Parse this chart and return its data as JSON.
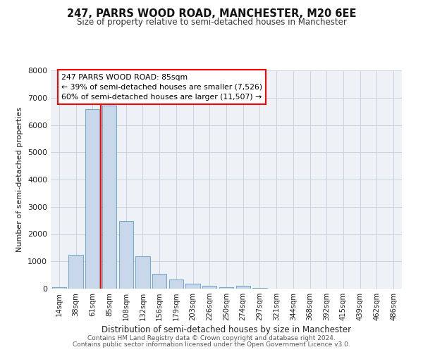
{
  "title": "247, PARRS WOOD ROAD, MANCHESTER, M20 6EE",
  "subtitle": "Size of property relative to semi-detached houses in Manchester",
  "xlabel": "Distribution of semi-detached houses by size in Manchester",
  "ylabel": "Number of semi-detached properties",
  "bar_labels": [
    "14sqm",
    "38sqm",
    "61sqm",
    "85sqm",
    "108sqm",
    "132sqm",
    "156sqm",
    "179sqm",
    "203sqm",
    "226sqm",
    "250sqm",
    "274sqm",
    "297sqm",
    "321sqm",
    "344sqm",
    "368sqm",
    "392sqm",
    "415sqm",
    "439sqm",
    "462sqm",
    "486sqm"
  ],
  "bar_values": [
    60,
    1250,
    6590,
    6720,
    2480,
    1180,
    530,
    335,
    190,
    100,
    55,
    100,
    30,
    0,
    0,
    0,
    0,
    0,
    0,
    0,
    0
  ],
  "bar_color": "#c8d8ea",
  "bar_edge_color": "#7aaac8",
  "red_line_index": 3,
  "annotation_title": "247 PARRS WOOD ROAD: 85sqm",
  "annotation_line1": "← 39% of semi-detached houses are smaller (7,526)",
  "annotation_line2": "60% of semi-detached houses are larger (11,507) →",
  "ylim": [
    0,
    8000
  ],
  "yticks": [
    0,
    1000,
    2000,
    3000,
    4000,
    5000,
    6000,
    7000,
    8000
  ],
  "footer1": "Contains HM Land Registry data © Crown copyright and database right 2024.",
  "footer2": "Contains public sector information licensed under the Open Government Licence v3.0.",
  "bg_color": "#ffffff",
  "plot_bg_color": "#eef2f7"
}
